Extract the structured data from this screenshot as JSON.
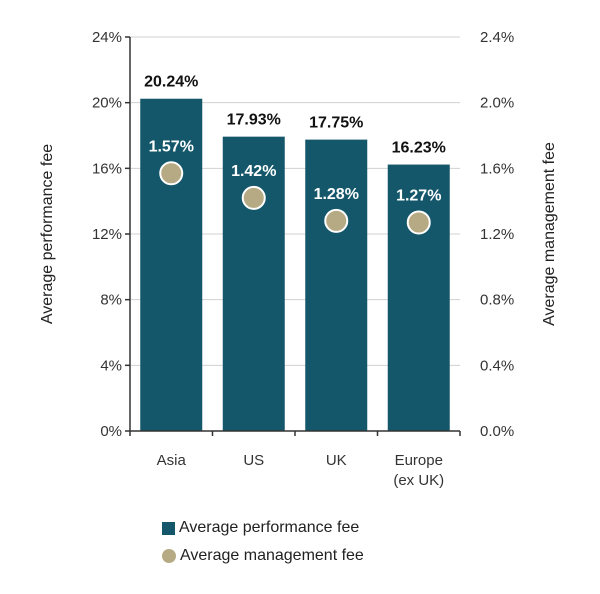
{
  "colors": {
    "bar": "#14576a",
    "dot": "#b5aa83",
    "dot_stroke": "#ffffff",
    "axis": "#333333",
    "grid": "#d0d0d0"
  },
  "chart_data": {
    "type": "bar",
    "categories": [
      [
        "Asia"
      ],
      [
        "US"
      ],
      [
        "UK"
      ],
      [
        "Europe",
        "(ex UK)"
      ]
    ],
    "series": [
      {
        "name": "Average performance fee",
        "axis": "left",
        "type": "bar",
        "values": [
          20.24,
          17.93,
          17.75,
          16.23
        ],
        "labels": [
          "20.24%",
          "17.93%",
          "17.75%",
          "16.23%"
        ]
      },
      {
        "name": "Average management fee",
        "axis": "right",
        "type": "scatter",
        "values": [
          1.57,
          1.42,
          1.28,
          1.27
        ],
        "labels": [
          "1.57%",
          "1.42%",
          "1.28%",
          "1.27%"
        ]
      }
    ],
    "ylabel": "Average performance fee",
    "y2label": "Average management fee",
    "ylim": [
      0,
      24
    ],
    "y2lim": [
      0,
      2.4
    ],
    "yticks": [
      "0%",
      "4%",
      "8%",
      "12%",
      "16%",
      "20%",
      "24%"
    ],
    "y2ticks": [
      "0.0%",
      "0.4%",
      "0.8%",
      "1.2%",
      "1.6%",
      "2.0%",
      "2.4%"
    ],
    "grid": true,
    "legend_position": "bottom"
  }
}
